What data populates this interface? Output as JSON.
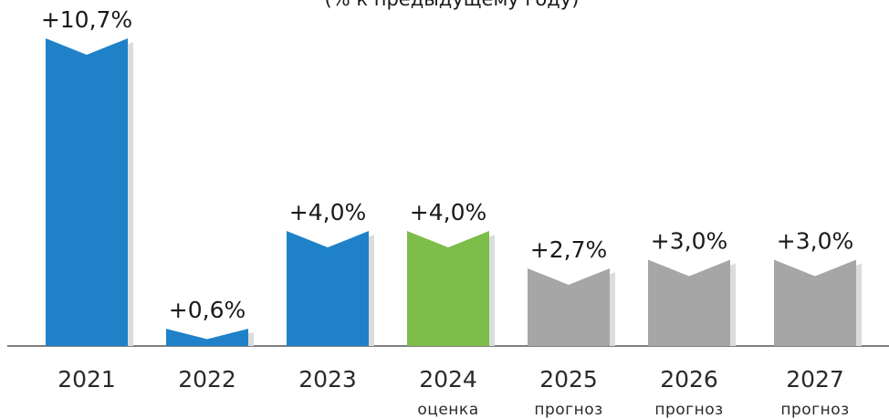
{
  "chart_data": {
    "type": "bar",
    "subtitle": "(% к предыдущему году)",
    "categories": [
      "2021",
      "2022",
      "2023",
      "2024",
      "2025",
      "2026",
      "2027"
    ],
    "category_notes": [
      null,
      null,
      null,
      "оценка",
      "прогноз",
      "прогноз",
      "прогноз"
    ],
    "values": [
      10.7,
      0.6,
      4.0,
      4.0,
      2.7,
      3.0,
      3.0
    ],
    "value_labels": [
      "+10,7%",
      "+0,6%",
      "+4,0%",
      "+4,0%",
      "+2,7%",
      "+3,0%",
      "+3,0%"
    ],
    "colors": [
      "#1f82c8",
      "#1f82c8",
      "#1f82c8",
      "#7dbd4a",
      "#a6a6a6",
      "#a6a6a6",
      "#a6a6a6"
    ]
  }
}
